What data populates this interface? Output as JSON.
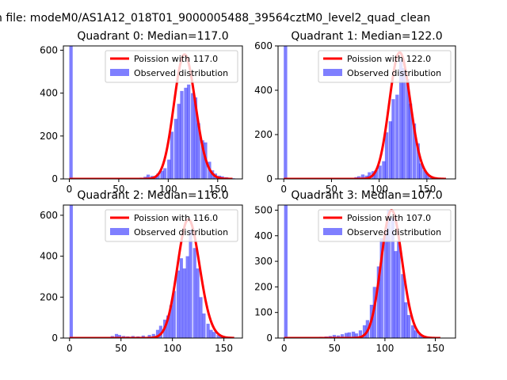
{
  "figure": {
    "suptitle": "n file: modeM0/AS1A12_018T01_9000005488_39564cztM0_level2_quad_clean"
  },
  "colors": {
    "hist": "#0000ff",
    "poisson": "#ff0000"
  },
  "chart_data": [
    {
      "type": "bar",
      "title": "Quadrant 0: Median=117.0",
      "xlim": [
        -6,
        175
      ],
      "ylim": [
        0,
        620
      ],
      "xticks": [
        0,
        50,
        100,
        150
      ],
      "yticks": [
        0,
        200,
        400,
        600
      ],
      "legend_placement": "upper-right",
      "legend": [
        "Poission with 117.0",
        "Observed distribution"
      ],
      "median": 117.0,
      "bin_width": 3.4,
      "spike": {
        "x": 0,
        "height": 620
      },
      "hist": [
        [
          61,
          4
        ],
        [
          64,
          3
        ],
        [
          68,
          2
        ],
        [
          71,
          6
        ],
        [
          75,
          10
        ],
        [
          78,
          20
        ],
        [
          82,
          14
        ],
        [
          85,
          8
        ],
        [
          88,
          25
        ],
        [
          92,
          38
        ],
        [
          95,
          50
        ],
        [
          99,
          90
        ],
        [
          102,
          220
        ],
        [
          106,
          280
        ],
        [
          109,
          350
        ],
        [
          112,
          410
        ],
        [
          116,
          425
        ],
        [
          119,
          440
        ],
        [
          123,
          400
        ],
        [
          126,
          380
        ],
        [
          129,
          260
        ],
        [
          133,
          180
        ],
        [
          136,
          170
        ],
        [
          140,
          80
        ],
        [
          143,
          40
        ],
        [
          146,
          25
        ],
        [
          150,
          15
        ],
        [
          153,
          12
        ],
        [
          157,
          8
        ],
        [
          160,
          5
        ],
        [
          164,
          3
        ]
      ],
      "legend_extra": [],
      "poisson_lambda": 117.0,
      "poisson_peak": 580,
      "poisson_range": [
        0,
        165
      ]
    },
    {
      "type": "bar",
      "title": "Quadrant 1: Median=122.0",
      "xlim": [
        -6,
        180
      ],
      "ylim": [
        0,
        600
      ],
      "xticks": [
        0,
        50,
        100,
        150
      ],
      "yticks": [
        0,
        200,
        400,
        600
      ],
      "legend_placement": "upper-right",
      "legend": [
        "Poission with 122.0",
        "Observed distribution"
      ],
      "median": 122.0,
      "bin_width": 3.6,
      "spike": {
        "x": 0,
        "height": 600
      },
      "hist": [
        [
          63,
          2
        ],
        [
          67,
          4
        ],
        [
          70,
          5
        ],
        [
          74,
          8
        ],
        [
          77,
          12
        ],
        [
          81,
          20
        ],
        [
          85,
          15
        ],
        [
          88,
          30
        ],
        [
          92,
          35
        ],
        [
          95,
          40
        ],
        [
          99,
          60
        ],
        [
          103,
          80
        ],
        [
          106,
          210
        ],
        [
          110,
          260
        ],
        [
          113,
          360
        ],
        [
          117,
          380
        ],
        [
          121,
          540
        ],
        [
          124,
          500
        ],
        [
          128,
          450
        ],
        [
          131,
          340
        ],
        [
          135,
          250
        ],
        [
          139,
          160
        ],
        [
          142,
          70
        ],
        [
          146,
          40
        ],
        [
          149,
          20
        ],
        [
          153,
          10
        ],
        [
          157,
          5
        ],
        [
          160,
          3
        ]
      ],
      "poisson_lambda": 122.0,
      "poisson_peak": 570,
      "poisson_range": [
        0,
        170
      ]
    },
    {
      "type": "bar",
      "title": "Quadrant 2: Median=116.0",
      "xlim": [
        -6,
        168
      ],
      "ylim": [
        0,
        650
      ],
      "xticks": [
        0,
        50,
        100,
        150
      ],
      "yticks": [
        0,
        200,
        400,
        600
      ],
      "legend_placement": "upper-right",
      "legend": [
        "Poission with 116.0",
        "Observed distribution"
      ],
      "median": 116.0,
      "bin_width": 3.2,
      "spike": {
        "x": 0,
        "height": 650
      },
      "hist": [
        [
          20,
          2
        ],
        [
          25,
          3
        ],
        [
          30,
          4
        ],
        [
          35,
          5
        ],
        [
          40,
          10
        ],
        [
          44,
          20
        ],
        [
          47,
          15
        ],
        [
          51,
          10
        ],
        [
          55,
          8
        ],
        [
          60,
          10
        ],
        [
          65,
          8
        ],
        [
          70,
          12
        ],
        [
          76,
          15
        ],
        [
          80,
          20
        ],
        [
          84,
          40
        ],
        [
          87,
          60
        ],
        [
          91,
          90
        ],
        [
          94,
          110
        ],
        [
          97,
          160
        ],
        [
          100,
          230
        ],
        [
          104,
          330
        ],
        [
          107,
          390
        ],
        [
          110,
          340
        ],
        [
          113,
          400
        ],
        [
          116,
          530
        ],
        [
          120,
          440
        ],
        [
          123,
          340
        ],
        [
          126,
          200
        ],
        [
          129,
          120
        ],
        [
          133,
          70
        ],
        [
          136,
          40
        ],
        [
          139,
          30
        ],
        [
          143,
          15
        ],
        [
          146,
          8
        ],
        [
          150,
          5
        ],
        [
          154,
          3
        ]
      ],
      "poisson_lambda": 116.0,
      "poisson_peak": 580,
      "poisson_range": [
        0,
        160
      ]
    },
    {
      "type": "bar",
      "title": "Quadrant 3: Median=107.0",
      "xlim": [
        -6,
        170
      ],
      "ylim": [
        0,
        520
      ],
      "xticks": [
        0,
        50,
        100,
        150
      ],
      "yticks": [
        0,
        100,
        200,
        300,
        400,
        500
      ],
      "legend_placement": "upper-right",
      "legend": [
        "Poission with 107.0",
        "Observed distribution"
      ],
      "median": 107.0,
      "bin_width": 3.4,
      "spike": {
        "x": 0,
        "height": 520
      },
      "hist": [
        [
          25,
          2
        ],
        [
          30,
          3
        ],
        [
          35,
          5
        ],
        [
          40,
          6
        ],
        [
          44,
          8
        ],
        [
          48,
          12
        ],
        [
          52,
          10
        ],
        [
          56,
          15
        ],
        [
          60,
          20
        ],
        [
          63,
          22
        ],
        [
          67,
          25
        ],
        [
          70,
          18
        ],
        [
          74,
          30
        ],
        [
          78,
          50
        ],
        [
          81,
          70
        ],
        [
          85,
          130
        ],
        [
          88,
          200
        ],
        [
          92,
          280
        ],
        [
          95,
          390
        ],
        [
          99,
          420
        ],
        [
          102,
          500
        ],
        [
          106,
          470
        ],
        [
          109,
          340
        ],
        [
          112,
          380
        ],
        [
          116,
          250
        ],
        [
          119,
          140
        ],
        [
          122,
          90
        ],
        [
          126,
          50
        ],
        [
          129,
          30
        ],
        [
          133,
          15
        ],
        [
          136,
          8
        ],
        [
          140,
          5
        ],
        [
          143,
          3
        ]
      ],
      "poisson_lambda": 107.0,
      "poisson_peak": 500,
      "poisson_range": [
        0,
        155
      ]
    }
  ]
}
